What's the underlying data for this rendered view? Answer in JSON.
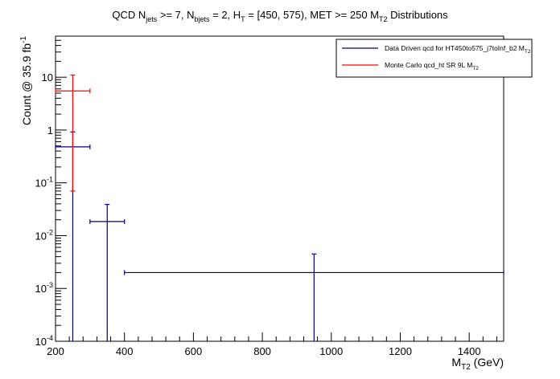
{
  "chart_data": {
    "type": "scatter",
    "title": {
      "prefix": "QCD N",
      "sub1": "jets",
      "part2": " >= 7, N",
      "sub2": "bjets",
      "part3": " = 2, H",
      "sub3": "T",
      "part4": " = [450, 575), MET >= 250 M",
      "sub4": "T2",
      "part5": " Distributions"
    },
    "xlabel": {
      "main": "M",
      "sub": "T2",
      "rest": " (GeV)"
    },
    "ylabel": {
      "main": "Count @ 35.9 fb",
      "sup": "-1"
    },
    "xlim": [
      200,
      1500
    ],
    "ylim": [
      0.0001,
      60
    ],
    "yscale": "log",
    "grid": false,
    "legend_placement": "top-right",
    "x_ticks": [
      200,
      400,
      600,
      800,
      1000,
      1200,
      1400
    ],
    "x_tick_labels": [
      "200",
      "400",
      "600",
      "800",
      "1000",
      "1200",
      "1400"
    ],
    "y_ticks": [
      {
        "value": 0.0001,
        "base": "10",
        "exp": "-4"
      },
      {
        "value": 0.001,
        "base": "10",
        "exp": "-3"
      },
      {
        "value": 0.01,
        "base": "10",
        "exp": "-2"
      },
      {
        "value": 0.1,
        "base": "10",
        "exp": "-1"
      },
      {
        "value": 1,
        "base": "1",
        "exp": ""
      },
      {
        "value": 10,
        "base": "10",
        "exp": ""
      }
    ],
    "series": [
      {
        "name": "Data Driven qcd for HT450to575_j7toInf_b2 M",
        "name_sub": "T2",
        "color": "#000080",
        "points": [
          {
            "x": 250,
            "xlow": 200,
            "xhigh": 300,
            "y": 0.48,
            "ylow": 0.0001,
            "yhigh": 0.92
          },
          {
            "x": 350,
            "xlow": 300,
            "xhigh": 400,
            "y": 0.0185,
            "ylow": 0.0001,
            "yhigh": 0.039
          },
          {
            "x": 950,
            "xlow": 400,
            "xhigh": 1500,
            "y": 0.002,
            "ylow": 0.0001,
            "yhigh": 0.0045
          }
        ]
      },
      {
        "name": "Monte Carlo qcd_ht SR 9L M",
        "name_sub": "T2",
        "color": "#ff0000",
        "points": [
          {
            "x": 250,
            "xlow": 200,
            "xhigh": 300,
            "y": 5.5,
            "ylow": 0.07,
            "yhigh": 11
          }
        ]
      }
    ]
  }
}
